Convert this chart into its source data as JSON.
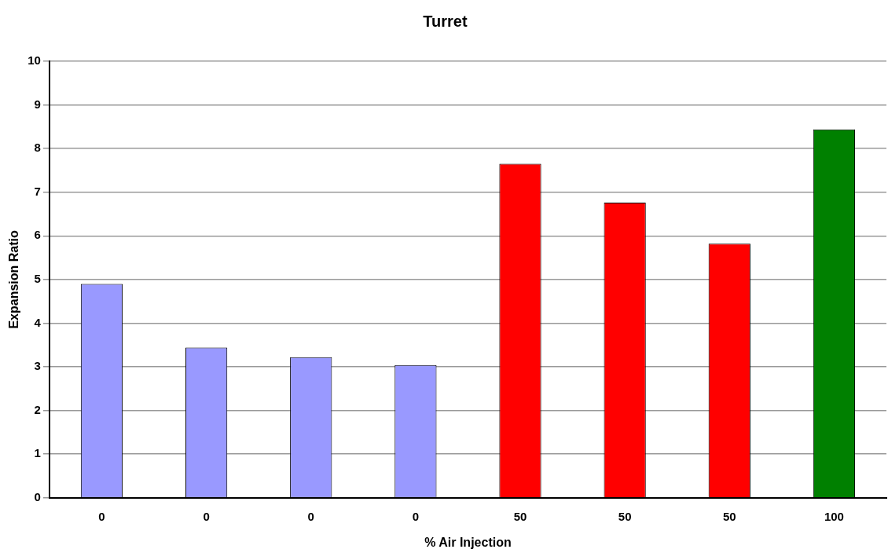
{
  "chart_data": {
    "type": "bar",
    "title": "Turret",
    "xlabel": "% Air Injection",
    "ylabel": "Expansion Ratio",
    "categories": [
      "0",
      "0",
      "0",
      "0",
      "50",
      "50",
      "50",
      "100"
    ],
    "values": [
      4.9,
      3.44,
      3.22,
      3.04,
      7.65,
      6.76,
      5.82,
      8.44
    ],
    "colors": [
      "#9999ff",
      "#9999ff",
      "#9999ff",
      "#9999ff",
      "#ff0000",
      "#ff0000",
      "#ff0000",
      "#008000"
    ],
    "ylim": [
      0,
      10
    ],
    "yticks": [
      0,
      1,
      2,
      3,
      4,
      5,
      6,
      7,
      8,
      9,
      10
    ],
    "grid": "y",
    "legend": false
  }
}
